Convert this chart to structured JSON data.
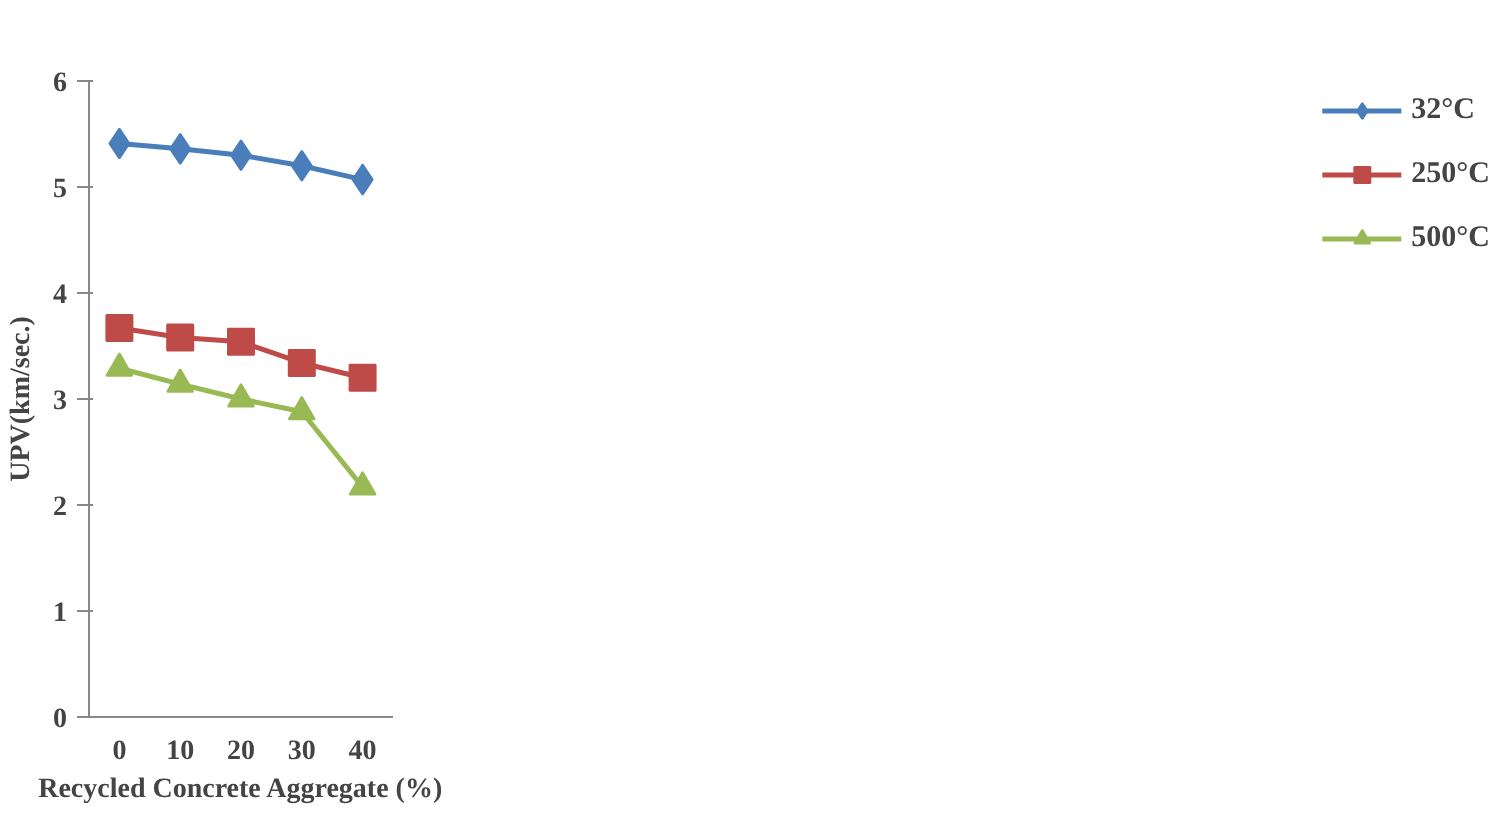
{
  "chart_data": {
    "type": "line",
    "xlabel": "Recycled Concrete Aggregate (%)",
    "ylabel": "UPV(km/sec.)",
    "categories": [
      "0",
      "10",
      "20",
      "30",
      "40"
    ],
    "series": [
      {
        "name": "32°C",
        "color": "#4a7ebb",
        "marker": "diamond",
        "values": [
          5.41,
          5.36,
          5.3,
          5.2,
          5.07
        ]
      },
      {
        "name": "250°C",
        "color": "#be4b48",
        "marker": "square",
        "values": [
          3.67,
          3.58,
          3.54,
          3.34,
          3.2
        ]
      },
      {
        "name": "500°C",
        "color": "#98b954",
        "marker": "triangle",
        "values": [
          3.29,
          3.14,
          3.0,
          2.88,
          2.17
        ]
      }
    ],
    "ylim": [
      0,
      6
    ],
    "yticks": [
      0,
      1,
      2,
      3,
      4,
      5,
      6
    ],
    "grid": false,
    "legend": "right",
    "line_style": "solid"
  }
}
